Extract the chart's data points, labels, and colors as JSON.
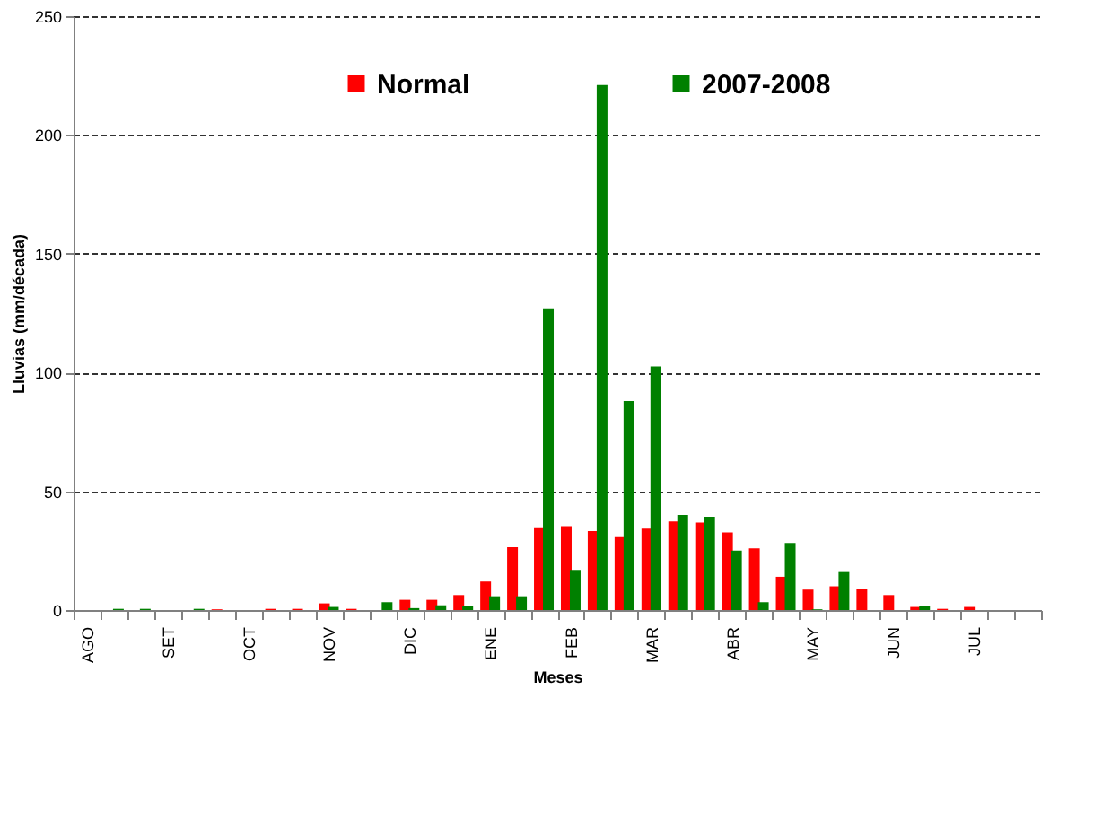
{
  "chart_data": {
    "type": "bar",
    "categories": [
      "AGO",
      null,
      null,
      "SET",
      null,
      null,
      "OCT",
      null,
      null,
      "NOV",
      null,
      null,
      "DIC",
      null,
      null,
      "ENE",
      null,
      null,
      "FEB",
      null,
      null,
      "MAR",
      null,
      null,
      "ABR",
      null,
      null,
      "MAY",
      null,
      null,
      "JUN",
      null,
      null,
      "JUL",
      null,
      null
    ],
    "series": [
      {
        "name": "Normal",
        "color": "#ff0000",
        "values": [
          0,
          0,
          0,
          0,
          0,
          0.3,
          0,
          0.5,
          0.5,
          2.8,
          0.5,
          0,
          4.3,
          4.3,
          6.3,
          12,
          26.4,
          34.8,
          35.3,
          33.2,
          30.7,
          34.3,
          37.3,
          36.8,
          32.7,
          26,
          14,
          8.6,
          10,
          9,
          6.3,
          1.3,
          0.5,
          1.3,
          0,
          0
        ]
      },
      {
        "name": "2007-2008",
        "color": "#008000",
        "values": [
          0,
          0.5,
          0.5,
          0,
          0.5,
          0,
          0,
          0,
          0,
          1.3,
          0,
          3.3,
          0.8,
          2,
          1.8,
          5.8,
          5.8,
          127,
          16.9,
          221,
          88,
          102.5,
          40,
          39.3,
          25,
          3.3,
          28.2,
          0.3,
          16,
          0,
          0,
          1.8,
          0,
          0,
          0,
          0
        ]
      }
    ],
    "xlabel": "Meses",
    "ylabel": "Lluvias (mm/década)",
    "ylim": [
      0,
      250
    ],
    "yticks": [
      0,
      50,
      100,
      150,
      200,
      250
    ],
    "grid": "y",
    "legend": "top"
  }
}
